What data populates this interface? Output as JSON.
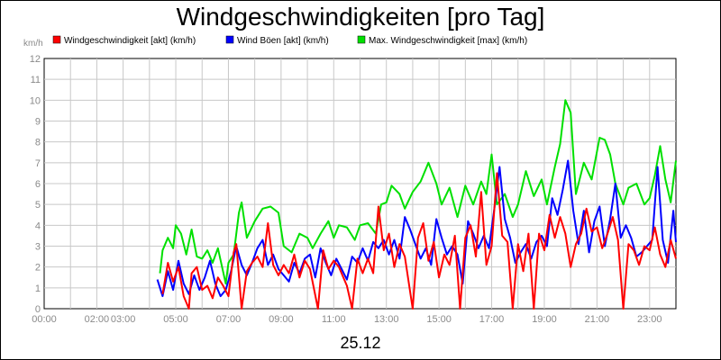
{
  "chart_data": {
    "type": "line",
    "title": "Windgeschwindigkeiten [pro Tag]",
    "ylabel": "km/h",
    "xlabel": "25.12",
    "ylim": [
      0,
      12
    ],
    "xlim_hours": [
      0,
      24
    ],
    "y_ticks": [
      "0",
      "1",
      "2",
      "3",
      "4",
      "5",
      "6",
      "7",
      "8",
      "9",
      "10",
      "11",
      "12"
    ],
    "x_ticks": [
      {
        "hour": 0,
        "label": "00:00"
      },
      {
        "hour": 2,
        "label": "02:00"
      },
      {
        "hour": 3,
        "label": "03:00"
      },
      {
        "hour": 5,
        "label": "05:00"
      },
      {
        "hour": 7,
        "label": "07:00"
      },
      {
        "hour": 9,
        "label": "09:00"
      },
      {
        "hour": 11,
        "label": "11:00"
      },
      {
        "hour": 13,
        "label": "13:00"
      },
      {
        "hour": 15,
        "label": "15:00"
      },
      {
        "hour": 17,
        "label": "17:00"
      },
      {
        "hour": 19,
        "label": "19:00"
      },
      {
        "hour": 21,
        "label": "21:00"
      },
      {
        "hour": 23,
        "label": "23:00"
      }
    ],
    "grid": true,
    "legend_position": "top",
    "series": [
      {
        "name": "Max. Windgeschwindigkeit [max] (km/h)",
        "color": "#00e000",
        "points": [
          [
            4.4,
            1.7
          ],
          [
            4.5,
            2.8
          ],
          [
            4.7,
            3.4
          ],
          [
            4.9,
            2.9
          ],
          [
            5.0,
            4.0
          ],
          [
            5.2,
            3.6
          ],
          [
            5.4,
            2.6
          ],
          [
            5.6,
            3.8
          ],
          [
            5.8,
            2.5
          ],
          [
            6.0,
            2.4
          ],
          [
            6.2,
            2.8
          ],
          [
            6.4,
            2.2
          ],
          [
            6.6,
            2.9
          ],
          [
            6.9,
            1.2
          ],
          [
            7.0,
            2.2
          ],
          [
            7.2,
            2.6
          ],
          [
            7.4,
            4.6
          ],
          [
            7.5,
            5.1
          ],
          [
            7.7,
            3.4
          ],
          [
            8.0,
            4.2
          ],
          [
            8.3,
            4.8
          ],
          [
            8.6,
            4.9
          ],
          [
            8.9,
            4.6
          ],
          [
            9.1,
            3.0
          ],
          [
            9.4,
            2.7
          ],
          [
            9.7,
            3.6
          ],
          [
            10.0,
            3.4
          ],
          [
            10.2,
            2.9
          ],
          [
            10.5,
            3.6
          ],
          [
            10.8,
            4.2
          ],
          [
            11.0,
            3.4
          ],
          [
            11.2,
            4.0
          ],
          [
            11.5,
            3.9
          ],
          [
            11.8,
            3.3
          ],
          [
            12.0,
            4.0
          ],
          [
            12.3,
            4.1
          ],
          [
            12.6,
            3.6
          ],
          [
            12.8,
            5.0
          ],
          [
            13.0,
            5.1
          ],
          [
            13.2,
            5.9
          ],
          [
            13.5,
            5.5
          ],
          [
            13.7,
            4.8
          ],
          [
            14.0,
            5.6
          ],
          [
            14.3,
            6.1
          ],
          [
            14.6,
            7.0
          ],
          [
            14.9,
            6.0
          ],
          [
            15.1,
            5.0
          ],
          [
            15.4,
            5.8
          ],
          [
            15.7,
            4.4
          ],
          [
            16.0,
            5.9
          ],
          [
            16.3,
            5.0
          ],
          [
            16.6,
            6.1
          ],
          [
            16.8,
            5.5
          ],
          [
            17.0,
            7.4
          ],
          [
            17.2,
            5.0
          ],
          [
            17.5,
            5.5
          ],
          [
            17.8,
            4.4
          ],
          [
            18.0,
            5.0
          ],
          [
            18.3,
            6.6
          ],
          [
            18.6,
            5.4
          ],
          [
            18.9,
            6.2
          ],
          [
            19.1,
            5.0
          ],
          [
            19.4,
            6.8
          ],
          [
            19.6,
            7.9
          ],
          [
            19.8,
            10.0
          ],
          [
            20.0,
            9.4
          ],
          [
            20.2,
            5.5
          ],
          [
            20.5,
            7.0
          ],
          [
            20.8,
            6.2
          ],
          [
            21.1,
            8.2
          ],
          [
            21.3,
            8.1
          ],
          [
            21.5,
            7.4
          ],
          [
            21.7,
            6.0
          ],
          [
            22.0,
            5.0
          ],
          [
            22.2,
            5.8
          ],
          [
            22.5,
            6.0
          ],
          [
            22.8,
            5.0
          ],
          [
            23.0,
            5.3
          ],
          [
            23.2,
            6.4
          ],
          [
            23.4,
            7.8
          ],
          [
            23.6,
            6.2
          ],
          [
            23.8,
            5.1
          ],
          [
            24.0,
            7.1
          ]
        ]
      },
      {
        "name": "Wind Böen [akt] (km/h)",
        "color": "#0000ff",
        "points": [
          [
            4.3,
            1.4
          ],
          [
            4.5,
            0.6
          ],
          [
            4.7,
            1.8
          ],
          [
            4.9,
            0.9
          ],
          [
            5.1,
            2.3
          ],
          [
            5.3,
            1.2
          ],
          [
            5.5,
            0.7
          ],
          [
            5.7,
            1.6
          ],
          [
            5.9,
            0.9
          ],
          [
            6.1,
            1.5
          ],
          [
            6.3,
            2.3
          ],
          [
            6.5,
            1.2
          ],
          [
            6.7,
            0.6
          ],
          [
            6.9,
            0.9
          ],
          [
            7.1,
            1.8
          ],
          [
            7.3,
            3.0
          ],
          [
            7.5,
            2.1
          ],
          [
            7.7,
            1.6
          ],
          [
            7.9,
            2.2
          ],
          [
            8.1,
            2.9
          ],
          [
            8.3,
            3.3
          ],
          [
            8.5,
            2.1
          ],
          [
            8.7,
            2.6
          ],
          [
            8.9,
            1.9
          ],
          [
            9.1,
            1.6
          ],
          [
            9.3,
            1.3
          ],
          [
            9.5,
            2.2
          ],
          [
            9.7,
            1.7
          ],
          [
            9.9,
            2.4
          ],
          [
            10.1,
            2.6
          ],
          [
            10.3,
            1.5
          ],
          [
            10.5,
            2.9
          ],
          [
            10.7,
            2.2
          ],
          [
            10.9,
            1.6
          ],
          [
            11.1,
            2.4
          ],
          [
            11.3,
            1.9
          ],
          [
            11.5,
            1.4
          ],
          [
            11.7,
            2.5
          ],
          [
            11.9,
            2.2
          ],
          [
            12.1,
            2.9
          ],
          [
            12.3,
            2.3
          ],
          [
            12.5,
            3.2
          ],
          [
            12.7,
            2.9
          ],
          [
            12.9,
            3.3
          ],
          [
            13.1,
            2.6
          ],
          [
            13.3,
            3.3
          ],
          [
            13.5,
            2.4
          ],
          [
            13.7,
            4.4
          ],
          [
            13.9,
            3.8
          ],
          [
            14.1,
            3.1
          ],
          [
            14.3,
            2.4
          ],
          [
            14.5,
            2.9
          ],
          [
            14.7,
            2.1
          ],
          [
            14.9,
            4.3
          ],
          [
            15.1,
            3.4
          ],
          [
            15.3,
            2.6
          ],
          [
            15.5,
            3.0
          ],
          [
            15.7,
            2.6
          ],
          [
            15.9,
            1.2
          ],
          [
            16.1,
            4.2
          ],
          [
            16.3,
            3.6
          ],
          [
            16.5,
            2.9
          ],
          [
            16.7,
            3.5
          ],
          [
            16.9,
            2.9
          ],
          [
            17.1,
            4.8
          ],
          [
            17.3,
            6.8
          ],
          [
            17.5,
            4.3
          ],
          [
            17.7,
            3.4
          ],
          [
            17.9,
            2.2
          ],
          [
            18.1,
            2.7
          ],
          [
            18.3,
            3.1
          ],
          [
            18.5,
            2.4
          ],
          [
            18.7,
            3.2
          ],
          [
            18.9,
            3.5
          ],
          [
            19.1,
            3.0
          ],
          [
            19.3,
            5.3
          ],
          [
            19.5,
            4.5
          ],
          [
            19.7,
            5.7
          ],
          [
            19.9,
            7.1
          ],
          [
            20.1,
            4.7
          ],
          [
            20.3,
            3.1
          ],
          [
            20.5,
            4.7
          ],
          [
            20.7,
            2.7
          ],
          [
            20.9,
            4.2
          ],
          [
            21.1,
            4.9
          ],
          [
            21.3,
            3.0
          ],
          [
            21.5,
            4.3
          ],
          [
            21.7,
            6.0
          ],
          [
            21.9,
            3.4
          ],
          [
            22.1,
            4.0
          ],
          [
            22.3,
            3.4
          ],
          [
            22.5,
            2.5
          ],
          [
            22.7,
            2.7
          ],
          [
            22.9,
            3.0
          ],
          [
            23.1,
            3.3
          ],
          [
            23.3,
            6.8
          ],
          [
            23.5,
            3.3
          ],
          [
            23.7,
            2.2
          ],
          [
            23.9,
            4.7
          ],
          [
            24.0,
            3.2
          ]
        ]
      },
      {
        "name": "Windgeschwindigkeit [akt] (km/h)",
        "color": "#ff0000",
        "points": [
          [
            4.5,
            0.7
          ],
          [
            4.7,
            2.2
          ],
          [
            4.9,
            1.3
          ],
          [
            5.1,
            2.0
          ],
          [
            5.3,
            0.6
          ],
          [
            5.5,
            0.0
          ],
          [
            5.6,
            1.7
          ],
          [
            5.8,
            2.0
          ],
          [
            6.0,
            0.9
          ],
          [
            6.2,
            1.1
          ],
          [
            6.4,
            0.5
          ],
          [
            6.6,
            1.5
          ],
          [
            6.8,
            1.1
          ],
          [
            7.0,
            0.6
          ],
          [
            7.2,
            2.7
          ],
          [
            7.3,
            3.1
          ],
          [
            7.5,
            0.0
          ],
          [
            7.7,
            1.8
          ],
          [
            7.9,
            2.2
          ],
          [
            8.1,
            2.5
          ],
          [
            8.3,
            2.0
          ],
          [
            8.5,
            4.1
          ],
          [
            8.7,
            2.1
          ],
          [
            8.9,
            1.6
          ],
          [
            9.1,
            2.1
          ],
          [
            9.3,
            1.7
          ],
          [
            9.5,
            2.6
          ],
          [
            9.7,
            1.5
          ],
          [
            9.9,
            2.3
          ],
          [
            10.1,
            1.9
          ],
          [
            10.4,
            0.0
          ],
          [
            10.6,
            2.8
          ],
          [
            10.8,
            1.9
          ],
          [
            11.0,
            2.3
          ],
          [
            11.2,
            2.0
          ],
          [
            11.5,
            1.1
          ],
          [
            11.7,
            0.0
          ],
          [
            11.9,
            2.4
          ],
          [
            12.1,
            1.7
          ],
          [
            12.3,
            2.4
          ],
          [
            12.5,
            1.7
          ],
          [
            12.7,
            4.9
          ],
          [
            12.9,
            2.8
          ],
          [
            13.1,
            3.6
          ],
          [
            13.3,
            2.0
          ],
          [
            13.5,
            3.1
          ],
          [
            13.7,
            2.5
          ],
          [
            14.0,
            0.0
          ],
          [
            14.2,
            3.4
          ],
          [
            14.4,
            4.1
          ],
          [
            14.6,
            2.3
          ],
          [
            14.8,
            3.2
          ],
          [
            15.0,
            1.5
          ],
          [
            15.2,
            2.6
          ],
          [
            15.4,
            2.1
          ],
          [
            15.6,
            3.5
          ],
          [
            15.8,
            0.0
          ],
          [
            16.0,
            3.4
          ],
          [
            16.2,
            4.0
          ],
          [
            16.4,
            2.5
          ],
          [
            16.6,
            5.6
          ],
          [
            16.8,
            2.1
          ],
          [
            17.0,
            3.0
          ],
          [
            17.2,
            6.5
          ],
          [
            17.4,
            3.5
          ],
          [
            17.6,
            3.2
          ],
          [
            17.8,
            0.0
          ],
          [
            18.0,
            3.1
          ],
          [
            18.2,
            1.8
          ],
          [
            18.4,
            3.6
          ],
          [
            18.6,
            0.0
          ],
          [
            18.8,
            3.6
          ],
          [
            19.0,
            2.8
          ],
          [
            19.2,
            4.5
          ],
          [
            19.4,
            3.4
          ],
          [
            19.6,
            4.4
          ],
          [
            19.8,
            3.6
          ],
          [
            20.0,
            2.0
          ],
          [
            20.2,
            3.1
          ],
          [
            20.4,
            3.6
          ],
          [
            20.6,
            4.8
          ],
          [
            20.8,
            3.7
          ],
          [
            21.0,
            3.9
          ],
          [
            21.2,
            2.9
          ],
          [
            21.4,
            3.6
          ],
          [
            21.6,
            4.4
          ],
          [
            21.8,
            3.3
          ],
          [
            22.0,
            0.0
          ],
          [
            22.2,
            3.1
          ],
          [
            22.4,
            2.8
          ],
          [
            22.6,
            2.1
          ],
          [
            22.8,
            3.0
          ],
          [
            23.0,
            2.8
          ],
          [
            23.2,
            3.9
          ],
          [
            23.4,
            2.6
          ],
          [
            23.6,
            2.0
          ],
          [
            23.8,
            3.3
          ],
          [
            24.0,
            2.4
          ]
        ]
      }
    ]
  }
}
